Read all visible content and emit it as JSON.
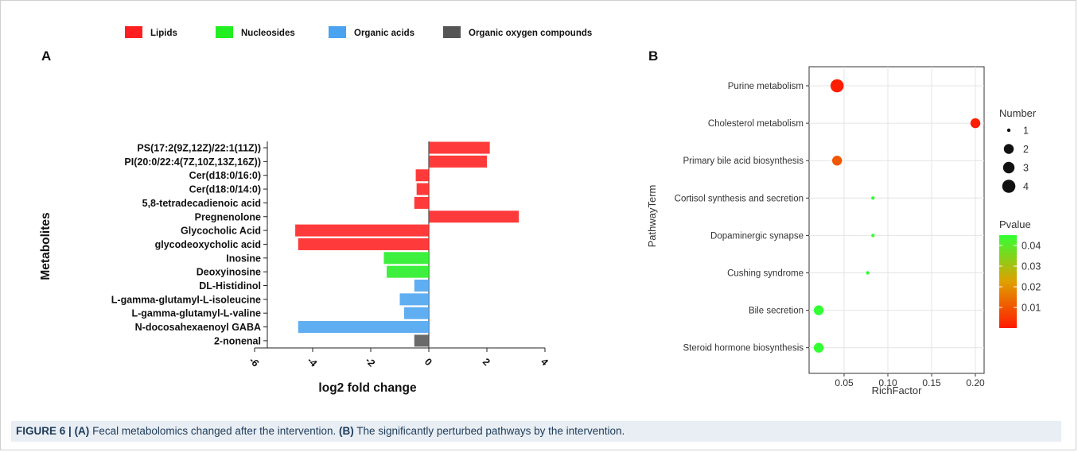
{
  "colors": {
    "Lipids": "#ff1f1f",
    "Nucleosides": "#22ee22",
    "Organic acids": "#4aa3f0",
    "Organic oxygen compounds": "#555555"
  },
  "legend_items": [
    "Lipids",
    "Nucleosides",
    "Organic acids",
    "Organic oxygen compounds"
  ],
  "caption": {
    "figure_label": "FIGURE 6 |",
    "a_tag": "(A)",
    "a_text": "Fecal metabolomics changed after the intervention.",
    "b_tag": "(B)",
    "b_text": "The significantly perturbed pathways by the intervention."
  },
  "chart_data": [
    {
      "panel": "A",
      "type": "bar",
      "orientation": "horizontal",
      "xlabel": "log2  fold change",
      "ylabel": "Metabolites",
      "xlim": [
        -6,
        4
      ],
      "xticks": [
        -6,
        -4,
        -2,
        0,
        2,
        4
      ],
      "xtick_labels": [
        "-6",
        "-4",
        "-2",
        "0",
        "2",
        "4"
      ],
      "legend": "top",
      "categories": [
        "PS(17:2(9Z,12Z)/22:1(11Z))",
        "PI(20:0/22:4(7Z,10Z,13Z,16Z))",
        "Cer(d18:0/16:0)",
        "Cer(d18:0/14:0)",
        "5,8-tetradecadienoic acid",
        "Pregnenolone",
        "Glycocholic Acid",
        "glycodeoxycholic acid",
        "Inosine",
        "Deoxyinosine",
        "DL-Histidinol",
        "L-gamma-glutamyl-L-isoleucine",
        "L-gamma-glutamyl-L-valine",
        "N-docosahexaenoyl GABA",
        "2-nonenal"
      ],
      "values": [
        2.1,
        2.0,
        -0.45,
        -0.42,
        -0.5,
        3.1,
        -4.6,
        -4.5,
        -1.55,
        -1.45,
        -0.5,
        -1.0,
        -0.85,
        -4.5,
        -0.5
      ],
      "groups": [
        "Lipids",
        "Lipids",
        "Lipids",
        "Lipids",
        "Lipids",
        "Lipids",
        "Lipids",
        "Lipids",
        "Nucleosides",
        "Nucleosides",
        "Organic acids",
        "Organic acids",
        "Organic acids",
        "Organic acids",
        "Organic oxygen compounds"
      ]
    },
    {
      "panel": "B",
      "type": "scatter",
      "xlabel": "RichFactor",
      "ylabel": "PathwayTerm",
      "xlim": [
        0.01,
        0.21
      ],
      "xticks": [
        0.05,
        0.1,
        0.15,
        0.2
      ],
      "xtick_labels": [
        "0.05",
        "0.10",
        "0.15",
        "0.20"
      ],
      "grid": true,
      "categories": [
        "Purine metabolism",
        "Cholesterol metabolism",
        "Primary bile acid biosynthesis",
        "Cortisol synthesis and secretion",
        "Dopaminergic synapse",
        "Cushing syndrome",
        "Bile secretion",
        "Steroid hormone biosynthesis"
      ],
      "rich_factor": [
        0.042,
        0.2,
        0.042,
        0.083,
        0.083,
        0.077,
        0.021,
        0.021
      ],
      "number": [
        4,
        2,
        2,
        1,
        1,
        1,
        2,
        2
      ],
      "pvalue": [
        0.0005,
        0.0005,
        0.01,
        0.045,
        0.045,
        0.045,
        0.045,
        0.045
      ],
      "size_legend": {
        "title": "Number",
        "values": [
          1,
          2,
          3,
          4
        ],
        "labels": [
          "1",
          "2",
          "3",
          "4"
        ]
      },
      "color_legend": {
        "title": "Pvalue",
        "ticks": [
          0.04,
          0.03,
          0.02,
          0.01
        ],
        "labels": [
          "0.04",
          "0.03",
          "0.02",
          "0.01"
        ],
        "range": [
          0,
          0.045
        ],
        "low_color": "#ff1a00",
        "mid_color": "#e0a000",
        "high_color": "#33ff33"
      }
    }
  ]
}
